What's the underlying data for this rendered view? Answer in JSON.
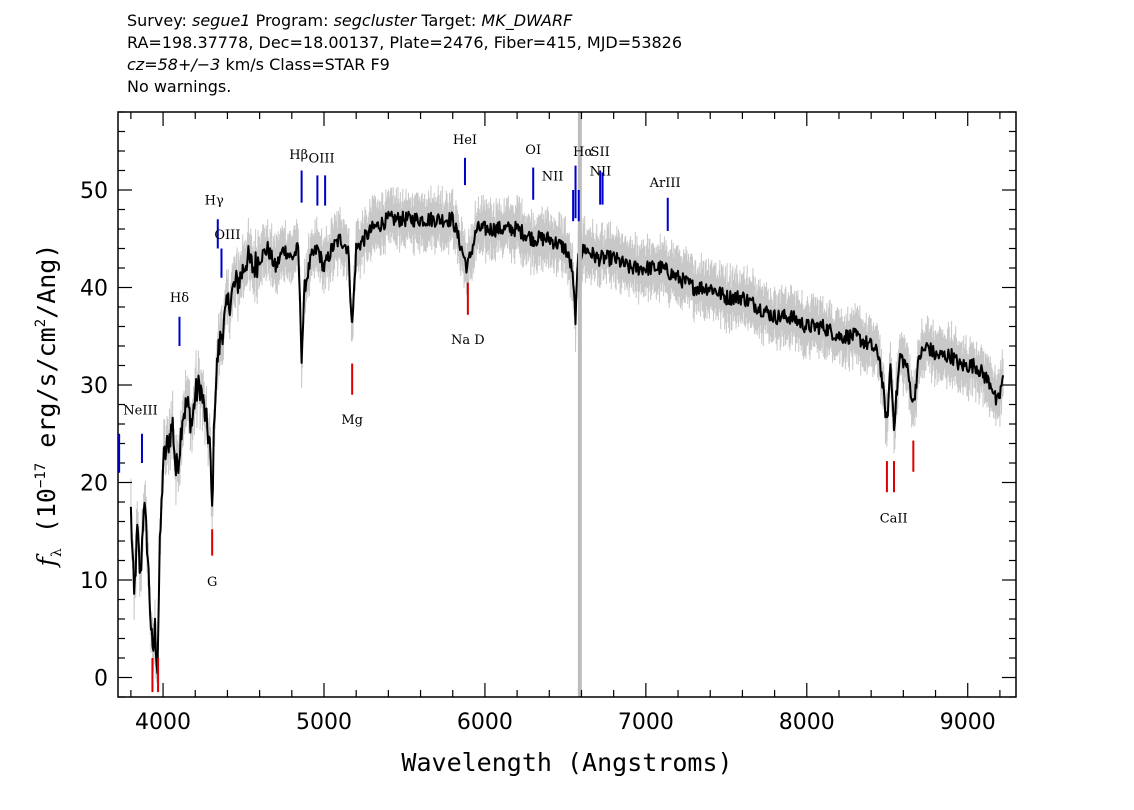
{
  "header": {
    "survey_label": "Survey:",
    "survey": "segue1",
    "program_label": "Program:",
    "program": "segcluster",
    "target_label": "Target:",
    "target": "MK_DWARF",
    "coords": "RA=198.37778, Dec=18.00137, Plate=2476, Fiber=415, MJD=53826",
    "redshift": "cz=58+/−3",
    "redshift_unit": "km/s",
    "class": "Class=STAR F9",
    "warnings": "No warnings."
  },
  "chart_data": {
    "type": "line",
    "xlabel": "Wavelength (Angstroms)",
    "ylabel": "fλ (10^-17 erg/s/cm^2/Ang)",
    "xlim": [
      3720,
      9300
    ],
    "ylim": [
      -2,
      58
    ],
    "x_ticks": [
      4000,
      5000,
      6000,
      7000,
      8000,
      9000
    ],
    "y_ticks": [
      0,
      10,
      20,
      30,
      40,
      50
    ],
    "grid": false,
    "legend": "none",
    "vertical_marker": {
      "x": 6590,
      "color": "#bdbdbd"
    },
    "series": [
      {
        "role": "flux",
        "color": "#000000",
        "x": [
          3800,
          3820,
          3840,
          3860,
          3880,
          3900,
          3920,
          3935,
          3950,
          3965,
          3980,
          4000,
          4030,
          4060,
          4080,
          4100,
          4120,
          4150,
          4180,
          4200,
          4230,
          4260,
          4290,
          4305,
          4320,
          4340,
          4360,
          4400,
          4440,
          4480,
          4520,
          4560,
          4600,
          4650,
          4700,
          4750,
          4800,
          4840,
          4861,
          4880,
          4920,
          4960,
          5000,
          5050,
          5100,
          5150,
          5175,
          5200,
          5250,
          5300,
          5400,
          5500,
          5600,
          5700,
          5800,
          5890,
          5950,
          6000,
          6100,
          6200,
          6300,
          6400,
          6500,
          6540,
          6563,
          6580,
          6620,
          6700,
          6800,
          6900,
          7000,
          7100,
          7200,
          7300,
          7400,
          7500,
          7600,
          7700,
          7800,
          7900,
          8000,
          8100,
          8200,
          8300,
          8400,
          8450,
          8498,
          8520,
          8542,
          8580,
          8620,
          8662,
          8700,
          8750,
          8800,
          8850,
          8900,
          8950,
          9000,
          9050,
          9100,
          9150,
          9180,
          9200,
          9220
        ],
        "y": [
          17,
          8,
          15,
          10,
          18,
          14,
          7,
          2,
          5,
          1,
          13,
          22,
          24,
          26,
          21,
          23,
          27,
          28,
          26,
          29,
          30,
          27,
          24,
          17,
          28,
          33,
          35,
          38,
          40,
          41,
          43,
          42,
          43,
          44,
          42,
          44,
          43,
          44,
          33,
          40,
          43,
          44,
          42,
          44,
          45,
          44,
          36,
          44,
          45,
          46,
          47,
          47,
          47,
          47,
          47,
          42,
          46,
          46,
          46,
          46,
          45,
          45,
          44,
          42,
          37,
          43,
          44,
          43,
          43,
          42,
          42,
          42,
          41,
          40,
          40,
          39,
          39,
          38,
          37,
          37,
          36,
          36,
          35,
          35,
          34,
          33,
          26,
          32,
          26,
          33,
          32,
          28,
          33,
          34,
          33,
          33,
          33,
          32,
          32,
          32,
          31,
          30,
          28,
          29,
          31
        ]
      }
    ],
    "error_band": {
      "color": "#c8c8c8",
      "half_width": 1.6
    },
    "line_markers": {
      "emission": [
        {
          "label": "",
          "x": 3727,
          "ytop": 25,
          "ybot": 21,
          "lx": 3727,
          "ly": 26
        },
        {
          "label": "NeIII",
          "x": 3869,
          "ytop": 25,
          "ybot": 22,
          "lx": 3860,
          "ly": 27
        },
        {
          "label": "Hδ",
          "x": 4102,
          "ytop": 37,
          "ybot": 34,
          "lx": 4102,
          "ly": 38.5
        },
        {
          "label": "Hγ",
          "x": 4340,
          "ytop": 47,
          "ybot": 44,
          "lx": 4318,
          "ly": 48.5
        },
        {
          "label": "OIII",
          "x": 4363,
          "ytop": 44,
          "ybot": 41,
          "lx": 4400,
          "ly": 45
        },
        {
          "label": "Hβ",
          "x": 4861,
          "ytop": 52,
          "ybot": 48.7,
          "lx": 4843,
          "ly": 53.2
        },
        {
          "label": "OIII",
          "x": 4959,
          "ytop": 51.5,
          "ybot": 48.4,
          "lx": 4985,
          "ly": 52.8
        },
        {
          "label": "",
          "x": 5007,
          "ytop": 51.5,
          "ybot": 48.4,
          "lx": 5007,
          "ly": 52.8
        },
        {
          "label": "HeI",
          "x": 5876,
          "ytop": 53.3,
          "ybot": 50.5,
          "lx": 5876,
          "ly": 54.7
        },
        {
          "label": "OI",
          "x": 6300,
          "ytop": 52.3,
          "ybot": 49,
          "lx": 6300,
          "ly": 53.7
        },
        {
          "label": "NII",
          "x": 6548,
          "ytop": 50,
          "ybot": 46.8,
          "lx": 6420,
          "ly": 51
        },
        {
          "label": "Hα",
          "x": 6563,
          "ytop": 52.5,
          "ybot": 47.1,
          "lx": 6610,
          "ly": 53.5
        },
        {
          "label": "",
          "x": 6583,
          "ytop": 50,
          "ybot": 46.8,
          "lx": 6583,
          "ly": 51
        },
        {
          "label": "SII",
          "x": 6716,
          "ytop": 52,
          "ybot": 48.5,
          "lx": 6716,
          "ly": 53.5
        },
        {
          "label": "NII",
          "x": 6731,
          "ytop": 51.8,
          "ybot": 48.5,
          "lx": 6718,
          "ly": 51.5
        },
        {
          "label": "ArIII",
          "x": 7136,
          "ytop": 49.2,
          "ybot": 45.8,
          "lx": 7120,
          "ly": 50.3
        }
      ],
      "absorption": [
        {
          "label": "",
          "x": 3934,
          "ytop": 2,
          "ybot": -1.5,
          "lx": 3934,
          "ly": 0
        },
        {
          "label": "",
          "x": 3969,
          "ytop": 2,
          "ybot": -1.5,
          "lx": 3969,
          "ly": 0
        },
        {
          "label": "G",
          "x": 4305,
          "ytop": 15.2,
          "ybot": 12.5,
          "lx": 4305,
          "ly": 10
        },
        {
          "label": "Mg",
          "x": 5175,
          "ytop": 32.2,
          "ybot": 29,
          "lx": 5175,
          "ly": 26.6
        },
        {
          "label": "Na D",
          "x": 5894,
          "ytop": 40.5,
          "ybot": 37.2,
          "lx": 5894,
          "ly": 34.8
        },
        {
          "label": "CaII",
          "x": 8498,
          "ytop": 22.2,
          "ybot": 19,
          "lx": 8540,
          "ly": 16.5
        },
        {
          "label": "",
          "x": 8542,
          "ytop": 22.2,
          "ybot": 19,
          "lx": 8542,
          "ly": 16.5
        },
        {
          "label": "",
          "x": 8662,
          "ytop": 24.3,
          "ybot": 21.1,
          "lx": 8662,
          "ly": 16.5
        }
      ]
    }
  },
  "colors": {
    "flux": "#000000",
    "error": "#c8c8c8",
    "emission": "#0000cc",
    "absorption": "#dd0000",
    "marker": "#bdbdbd"
  }
}
